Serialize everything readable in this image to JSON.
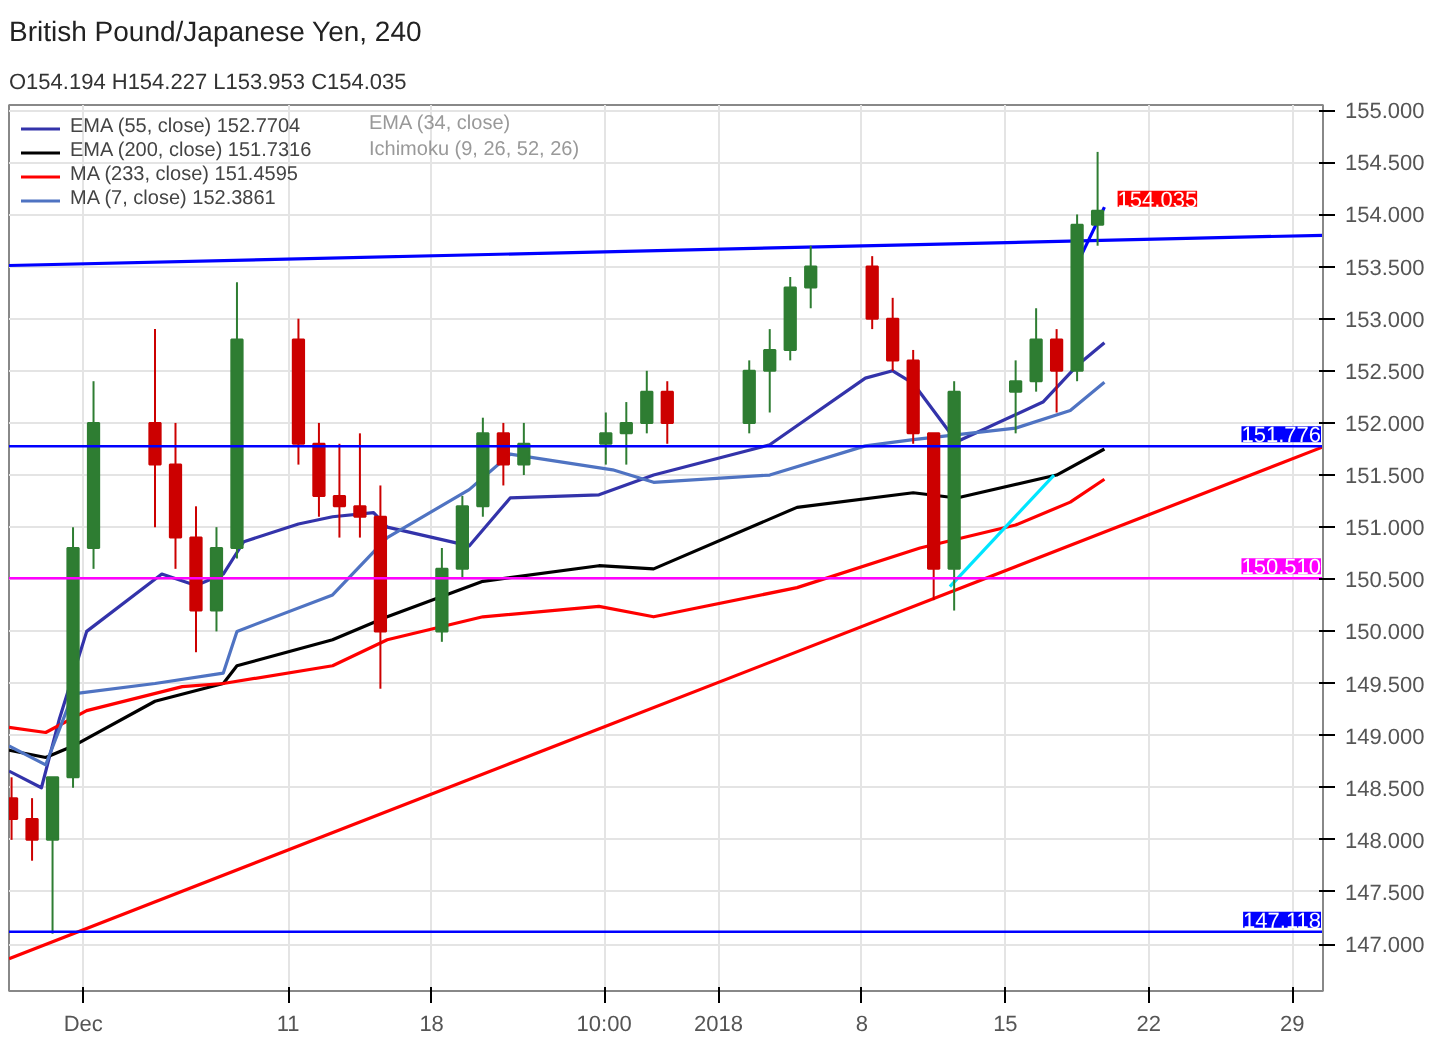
{
  "chart_data": {
    "type": "candlestick",
    "title": "British Pound/Japanese Yen, 240",
    "subtitle": "O154.194 H154.227 L153.953 C154.035",
    "x": [
      "2017-11-27T12:00",
      "2017-11-28T12:00",
      "2017-11-29T12:00",
      "2017-11-30T12:00",
      "2017-12-01T12:00",
      "2017-12-04T12:00",
      "2017-12-05T12:00",
      "2017-12-06T12:00",
      "2017-12-07T12:00",
      "2017-12-08T12:00",
      "2017-12-11T12:00",
      "2017-12-12T12:00",
      "2017-12-13T12:00",
      "2017-12-14T12:00",
      "2017-12-15T12:00",
      "2017-12-18T12:00",
      "2017-12-19T12:00",
      "2017-12-20T12:00",
      "2017-12-21T12:00",
      "2017-12-22T12:00",
      "2017-12-26T12:00",
      "2017-12-27T12:00",
      "2017-12-28T12:00",
      "2017-12-29T12:00",
      "2018-01-02T12:00",
      "2018-01-03T12:00",
      "2018-01-04T12:00",
      "2018-01-05T12:00",
      "2018-01-08T12:00",
      "2018-01-09T12:00",
      "2018-01-10T12:00",
      "2018-01-11T12:00",
      "2018-01-12T12:00",
      "2018-01-15T12:00",
      "2018-01-16T12:00",
      "2018-01-17T12:00",
      "2018-01-18T12:00",
      "2018-01-19T12:00"
    ],
    "ohlc": [
      [
        148.4,
        148.6,
        148.0,
        148.2
      ],
      [
        148.2,
        148.4,
        147.8,
        148.0
      ],
      [
        148.0,
        148.6,
        147.1,
        148.6
      ],
      [
        148.6,
        151.0,
        148.5,
        150.8
      ],
      [
        150.8,
        152.4,
        150.6,
        152.0
      ],
      [
        152.0,
        152.9,
        151.0,
        151.6
      ],
      [
        151.6,
        152.0,
        150.6,
        150.9
      ],
      [
        150.9,
        151.2,
        149.8,
        150.2
      ],
      [
        150.2,
        151.0,
        150.0,
        150.8
      ],
      [
        150.8,
        153.35,
        150.7,
        152.8
      ],
      [
        152.8,
        153.0,
        151.6,
        151.8
      ],
      [
        151.8,
        152.0,
        151.1,
        151.3
      ],
      [
        151.3,
        151.8,
        150.9,
        151.2
      ],
      [
        151.2,
        151.9,
        150.9,
        151.1
      ],
      [
        151.1,
        151.4,
        149.45,
        150.0
      ],
      [
        150.0,
        150.8,
        149.9,
        150.6
      ],
      [
        150.6,
        151.3,
        150.5,
        151.2
      ],
      [
        151.2,
        152.05,
        151.1,
        151.9
      ],
      [
        151.9,
        152.0,
        151.4,
        151.6
      ],
      [
        151.6,
        152.0,
        151.5,
        151.8
      ],
      [
        151.8,
        152.1,
        151.6,
        151.9
      ],
      [
        151.9,
        152.2,
        151.6,
        152.0
      ],
      [
        152.0,
        152.5,
        151.9,
        152.3
      ],
      [
        152.3,
        152.4,
        151.8,
        152.0
      ],
      [
        152.0,
        152.6,
        151.9,
        152.5
      ],
      [
        152.5,
        152.9,
        152.1,
        152.7
      ],
      [
        152.7,
        153.4,
        152.6,
        153.3
      ],
      [
        153.3,
        153.7,
        153.1,
        153.5
      ],
      [
        153.5,
        153.6,
        152.9,
        153.0
      ],
      [
        153.0,
        153.2,
        152.5,
        152.6
      ],
      [
        152.6,
        152.7,
        151.8,
        151.9
      ],
      [
        151.9,
        151.9,
        150.3,
        150.6
      ],
      [
        150.6,
        152.4,
        150.2,
        152.3
      ],
      [
        152.3,
        152.6,
        151.9,
        152.4
      ],
      [
        152.4,
        153.1,
        152.3,
        152.8
      ],
      [
        152.8,
        152.9,
        152.1,
        152.5
      ],
      [
        152.5,
        154.0,
        152.4,
        153.9
      ],
      [
        153.9,
        154.6,
        153.7,
        154.035
      ]
    ],
    "colors": [
      "#cc0000",
      "#cc0000",
      "#2e7d32",
      "#2e7d32",
      "#2e7d32",
      "#cc0000",
      "#cc0000",
      "#cc0000",
      "#2e7d32",
      "#2e7d32",
      "#cc0000",
      "#cc0000",
      "#cc0000",
      "#cc0000",
      "#cc0000",
      "#2e7d32",
      "#2e7d32",
      "#2e7d32",
      "#cc0000",
      "#2e7d32",
      "#2e7d32",
      "#2e7d32",
      "#2e7d32",
      "#cc0000",
      "#2e7d32",
      "#2e7d32",
      "#2e7d32",
      "#2e7d32",
      "#cc0000",
      "#cc0000",
      "#cc0000",
      "#cc0000",
      "#2e7d32",
      "#2e7d32",
      "#2e7d32",
      "#cc0000",
      "#2e7d32",
      "#2e7d32"
    ],
    "series": [
      {
        "type": "line",
        "name": "EMA (55, close) 152.7704",
        "color": "#3333aa",
        "x": [
          "2017-11-27T09:00",
          "2017-11-28T23:00",
          "2017-11-29T20:00",
          "2017-12-01T04:00",
          "2017-12-04T20:00",
          "2017-12-06T12:00",
          "2017-12-07T20:00",
          "2017-12-08T20:00",
          "2017-12-11T12:00",
          "2017-12-13T04:00",
          "2017-12-15T04:00",
          "2017-12-15T20:00",
          "2017-12-19T20:00",
          "2017-12-21T20:00",
          "2017-12-26T04:00",
          "2017-12-28T20:00",
          "2018-01-03T12:00",
          "2018-01-08T04:00",
          "2018-01-09T12:00",
          "2018-01-10T12:00",
          "2018-01-12T15:00",
          "2018-01-16T20:00",
          "2018-01-18T12:00",
          "2018-01-19T20:00"
        ],
        "values": [
          148.66,
          148.5,
          149.16,
          150.0,
          150.55,
          150.44,
          150.55,
          150.86,
          151.03,
          151.1,
          151.14,
          151.0,
          150.82,
          151.28,
          151.31,
          151.5,
          151.79,
          152.43,
          152.5,
          152.38,
          151.82,
          152.2,
          152.55,
          152.77
        ]
      },
      {
        "type": "line",
        "name": "EMA (200, close) 151.7316",
        "color": "#000000",
        "x": [
          "2017-11-27T09:00",
          "2017-11-29T04:00",
          "2017-11-30T12:00",
          "2017-12-04T12:00",
          "2017-12-07T20:00",
          "2017-12-08T12:00",
          "2017-12-13T04:00",
          "2017-12-15T20:00",
          "2017-12-20T12:00",
          "2017-12-26T04:00",
          "2017-12-28T20:00",
          "2018-01-04T20:00",
          "2018-01-10T12:00",
          "2018-01-12T15:00",
          "2018-01-17T12:00",
          "2018-01-19T20:00"
        ],
        "values": [
          148.86,
          148.79,
          148.9,
          149.33,
          149.5,
          149.67,
          149.92,
          150.14,
          150.48,
          150.63,
          150.6,
          151.19,
          151.33,
          151.28,
          151.5,
          151.75
        ]
      },
      {
        "type": "line",
        "name": "MA (233, close) 151.4595",
        "color": "#ff0000",
        "x": [
          "2017-11-27T09:00",
          "2017-11-29T04:00",
          "2017-12-01T04:00",
          "2017-12-05T20:00",
          "2017-12-07T20:00",
          "2017-12-13T04:00",
          "2017-12-15T20:00",
          "2017-12-20T12:00",
          "2017-12-26T04:00",
          "2017-12-28T20:00",
          "2018-01-04T20:00",
          "2018-01-10T20:00",
          "2018-01-15T12:00",
          "2018-01-18T04:00",
          "2018-01-19T20:00"
        ],
        "values": [
          149.08,
          149.03,
          149.24,
          149.47,
          149.5,
          149.67,
          149.92,
          150.14,
          150.24,
          150.14,
          150.42,
          150.8,
          151.02,
          151.24,
          151.46
        ]
      },
      {
        "type": "line",
        "name": "MA (7, close) 152.3861",
        "color": "#4f73c2",
        "x": [
          "2017-11-27T09:00",
          "2017-11-29T04:00",
          "2017-11-30T12:00",
          "2017-12-04T12:00",
          "2017-12-07T20:00",
          "2017-12-08T12:00",
          "2017-12-13T04:00",
          "2017-12-15T20:00",
          "2017-12-19T20:00",
          "2017-12-21T20:00",
          "2017-12-26T20:00",
          "2017-12-28T20:00",
          "2018-01-03T12:00",
          "2018-01-08T04:00",
          "2018-01-10T12:00",
          "2018-01-15T12:00",
          "2018-01-18T04:00",
          "2018-01-19T20:00"
        ],
        "values": [
          148.9,
          148.72,
          149.4,
          149.5,
          149.6,
          150.0,
          150.35,
          150.9,
          151.36,
          151.7,
          151.55,
          151.43,
          151.5,
          151.78,
          151.84,
          151.95,
          152.12,
          152.39
        ]
      },
      {
        "type": "line",
        "color": "#0000ff",
        "x": [
          "2017-11-27T09:00",
          "2018-01-30T12:00"
        ],
        "values": [
          153.51,
          153.8
        ]
      },
      {
        "type": "line",
        "color": "#ff0000",
        "x": [
          "2017-11-27T09:00",
          "2018-01-30T12:00"
        ],
        "values": [
          146.86,
          151.77
        ]
      },
      {
        "type": "line",
        "color": "#00e5ff",
        "x": [
          "2018-01-12T07:00",
          "2018-01-17T09:00"
        ],
        "values": [
          150.43,
          151.5
        ]
      },
      {
        "type": "line",
        "color": "#0000ff",
        "x": [
          "2018-01-18T17:00",
          "2018-01-19T20:00"
        ],
        "values": [
          153.61,
          154.07
        ]
      }
    ],
    "xlim": [
      "2017-11-27T09:00",
      "2018-01-30T12:00"
    ],
    "xticks": [
      {
        "value": "2017-12-01",
        "label": "Dec"
      },
      {
        "value": "2017-12-11",
        "label": "11"
      },
      {
        "value": "2017-12-18",
        "label": "18"
      },
      {
        "value": "2017-12-26T10:00",
        "label": "10:00"
      },
      {
        "value": "2018-01-01",
        "label": "2018"
      },
      {
        "value": "2018-01-08",
        "label": "8"
      },
      {
        "value": "2018-01-15",
        "label": "15"
      },
      {
        "value": "2018-01-22",
        "label": "22"
      },
      {
        "value": "2018-01-29",
        "label": "29"
      }
    ],
    "ylim": [
      146.55,
      155.05
    ],
    "yticks": [
      {
        "value": 147,
        "label": "147.000"
      },
      {
        "value": 147.5,
        "label": "147.500"
      },
      {
        "value": 148,
        "label": "148.000"
      },
      {
        "value": 148.5,
        "label": "148.500"
      },
      {
        "value": 149,
        "label": "149.000"
      },
      {
        "value": 149.5,
        "label": "149.500"
      },
      {
        "value": 150,
        "label": "150.000"
      },
      {
        "value": 150.5,
        "label": "150.500"
      },
      {
        "value": 151,
        "label": "151.000"
      },
      {
        "value": 151.5,
        "label": "151.500"
      },
      {
        "value": 152,
        "label": "152.000"
      },
      {
        "value": 152.5,
        "label": "152.500"
      },
      {
        "value": 153,
        "label": "153.000"
      },
      {
        "value": 153.5,
        "label": "153.500"
      },
      {
        "value": 154,
        "label": "154.000"
      },
      {
        "value": 154.5,
        "label": "154.500"
      },
      {
        "value": 155,
        "label": "155.000"
      }
    ],
    "ref_lines": [
      {
        "axis": "y",
        "value": 151.776,
        "label": "151.776",
        "color": "#0000ff"
      },
      {
        "axis": "y",
        "value": 150.51,
        "label": "150.510",
        "color": "#ff00ff"
      },
      {
        "axis": "y",
        "value": 147.118,
        "label": "147.118",
        "color": "#0000ff"
      }
    ],
    "annotations": [
      "EMA (34, close)",
      "Ichimoku (9, 26, 52, 26)",
      {
        "text": "154.035",
        "x": "2018-01-19T12:00",
        "y": 154.035
      }
    ],
    "grid": true,
    "legend": "top left"
  }
}
